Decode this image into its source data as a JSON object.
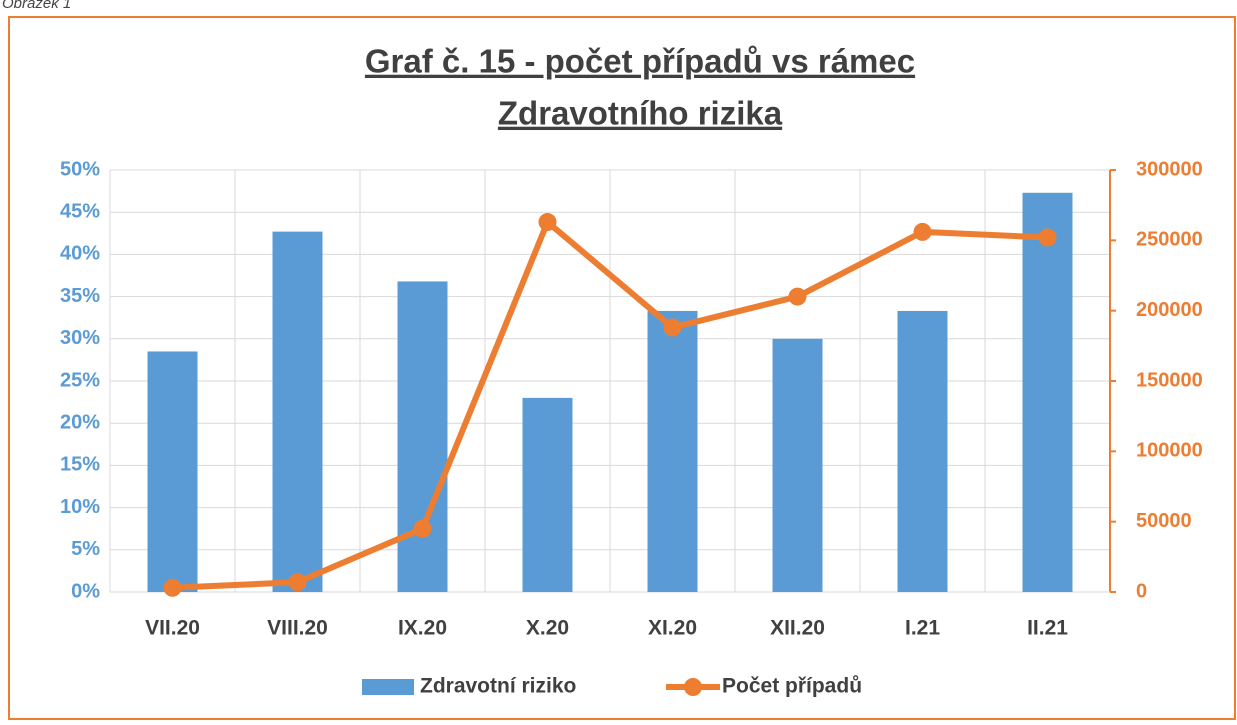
{
  "caption": "Obrázek 1",
  "chart_data": {
    "type": "bar-line",
    "title": [
      "Graf č. 15 - počet případů vs rámec",
      "Zdravotního rizika"
    ],
    "categories": [
      "VII.20",
      "VIII.20",
      "IX.20",
      "X.20",
      "XI.20",
      "XII.20",
      "I.21",
      "II.21"
    ],
    "series": [
      {
        "name": "Zdravotní riziko",
        "type": "bar",
        "color": "#5b9bd5",
        "axis": "y",
        "values": [
          28.5,
          42.7,
          36.8,
          23,
          33.3,
          30,
          33.3,
          47.3
        ]
      },
      {
        "name": "Počet případů",
        "type": "line",
        "color": "#ed7d31",
        "axis": "y2",
        "values": [
          3000,
          7000,
          45000,
          263000,
          188000,
          210000,
          256000,
          252000
        ]
      }
    ],
    "ylim": [
      0,
      50
    ],
    "yticks": [
      {
        "value": 0,
        "label": "0%"
      },
      {
        "value": 5,
        "label": "5%"
      },
      {
        "value": 10,
        "label": "10%"
      },
      {
        "value": 15,
        "label": "15%"
      },
      {
        "value": 20,
        "label": "20%"
      },
      {
        "value": 25,
        "label": "25%"
      },
      {
        "value": 30,
        "label": "30%"
      },
      {
        "value": 35,
        "label": "35%"
      },
      {
        "value": 40,
        "label": "40%"
      },
      {
        "value": 45,
        "label": "45%"
      },
      {
        "value": 50,
        "label": "50%"
      }
    ],
    "y2lim": [
      0,
      300000
    ],
    "y2ticks": [
      0,
      50000,
      100000,
      150000,
      200000,
      250000,
      300000
    ],
    "grid": true,
    "legend": "bottom"
  }
}
